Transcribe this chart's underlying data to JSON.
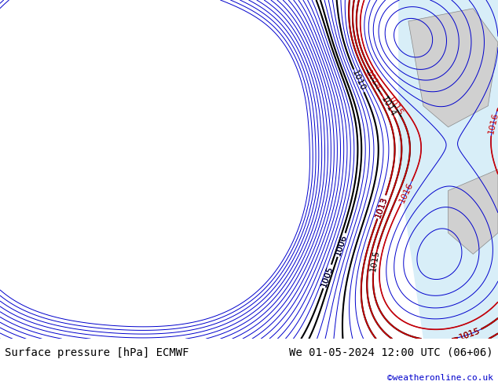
{
  "title_left": "Surface pressure [hPa] ECMWF",
  "title_right": "We 01-05-2024 12:00 UTC (06+06)",
  "credit": "©weatheronline.co.uk",
  "bg_color_land": "#c8f0a0",
  "bg_color_sea": "#e8f4f8",
  "contour_color_blue": "#0000cc",
  "contour_color_black": "#000000",
  "contour_color_red": "#cc0000",
  "label_fontsize": 8,
  "title_fontsize": 10,
  "credit_fontsize": 8,
  "bottom_bar_color": "#ffffff",
  "bottom_text_color": "#000000",
  "credit_color": "#0000cc"
}
